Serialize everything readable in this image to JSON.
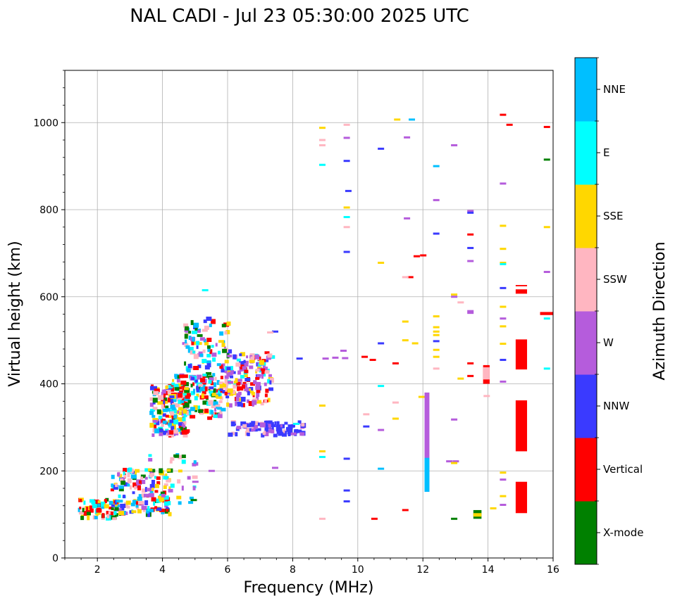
{
  "chart_data": {
    "type": "scatter",
    "title": "NAL CADI - Jul 23 05:30:00 2025 UTC",
    "xlabel": "Frequency (MHz)",
    "ylabel": "Virtual height (km)",
    "xlim": [
      1,
      16
    ],
    "ylim": [
      0,
      1120
    ],
    "xticks": [
      2,
      4,
      6,
      8,
      10,
      12,
      14,
      16
    ],
    "yticks": [
      0,
      200,
      400,
      600,
      800,
      1000
    ],
    "grid": true,
    "colorbar": {
      "label": "Azimuth Direction",
      "categories": [
        {
          "name": "X-mode",
          "color": "#008000"
        },
        {
          "name": "Vertical",
          "color": "#ff0000"
        },
        {
          "name": "NNW",
          "color": "#3a3aff"
        },
        {
          "name": "W",
          "color": "#b55cdc"
        },
        {
          "name": "SSW",
          "color": "#ffb6c1"
        },
        {
          "name": "SSE",
          "color": "#ffd700"
        },
        {
          "name": "E",
          "color": "#00ffff"
        },
        {
          "name": "NNE",
          "color": "#00bfff"
        }
      ]
    },
    "segments": [
      {
        "x0": 14.85,
        "x1": 15.2,
        "y0": 103,
        "y1": 175,
        "c": "Vertical"
      },
      {
        "x0": 14.85,
        "x1": 15.2,
        "y0": 245,
        "y1": 362,
        "c": "Vertical"
      },
      {
        "x0": 14.85,
        "x1": 15.2,
        "y0": 433,
        "y1": 502,
        "c": "Vertical"
      },
      {
        "x0": 14.85,
        "x1": 15.2,
        "y0": 607,
        "y1": 617,
        "c": "Vertical"
      },
      {
        "x0": 14.85,
        "x1": 15.2,
        "y0": 624,
        "y1": 627,
        "c": "Vertical"
      },
      {
        "x0": 12.05,
        "x1": 12.2,
        "y0": 152,
        "y1": 380,
        "c": "W"
      },
      {
        "x0": 12.05,
        "x1": 12.2,
        "y0": 152,
        "y1": 230,
        "c": "NNE"
      },
      {
        "x0": 13.55,
        "x1": 13.8,
        "y0": 90,
        "y1": 110,
        "c": "X-mode"
      },
      {
        "x0": 13.55,
        "x1": 13.8,
        "y0": 95,
        "y1": 103,
        "c": "SSE"
      },
      {
        "x0": 13.85,
        "x1": 14.05,
        "y0": 400,
        "y1": 443,
        "c": "Vertical"
      },
      {
        "x0": 13.85,
        "x1": 14.05,
        "y0": 410,
        "y1": 438,
        "c": "SSW"
      },
      {
        "x0": 15.6,
        "x1": 16.0,
        "y0": 558,
        "y1": 565,
        "c": "Vertical"
      }
    ],
    "points": [
      {
        "f": 8.9,
        "h": 988,
        "c": "SSE"
      },
      {
        "f": 8.9,
        "h": 960,
        "c": "SSW"
      },
      {
        "f": 8.9,
        "h": 948,
        "c": "SSW"
      },
      {
        "f": 8.9,
        "h": 903,
        "c": "E"
      },
      {
        "f": 8.9,
        "h": 350,
        "c": "SSE"
      },
      {
        "f": 8.9,
        "h": 245,
        "c": "SSE"
      },
      {
        "f": 8.9,
        "h": 232,
        "c": "E"
      },
      {
        "f": 8.9,
        "h": 90,
        "c": "SSW"
      },
      {
        "f": 9.65,
        "h": 995,
        "c": "SSW"
      },
      {
        "f": 9.65,
        "h": 965,
        "c": "W"
      },
      {
        "f": 9.65,
        "h": 912,
        "c": "NNW"
      },
      {
        "f": 9.7,
        "h": 843,
        "c": "NNW"
      },
      {
        "f": 9.65,
        "h": 805,
        "c": "SSE"
      },
      {
        "f": 9.65,
        "h": 783,
        "c": "E"
      },
      {
        "f": 9.65,
        "h": 760,
        "c": "SSW"
      },
      {
        "f": 9.65,
        "h": 703,
        "c": "NNW"
      },
      {
        "f": 9.65,
        "h": 228,
        "c": "NNW"
      },
      {
        "f": 9.65,
        "h": 155,
        "c": "NNW"
      },
      {
        "f": 9.65,
        "h": 130,
        "c": "NNW"
      },
      {
        "f": 10.7,
        "h": 940,
        "c": "NNW"
      },
      {
        "f": 10.7,
        "h": 678,
        "c": "SSE"
      },
      {
        "f": 10.7,
        "h": 493,
        "c": "NNW"
      },
      {
        "f": 10.7,
        "h": 395,
        "c": "E"
      },
      {
        "f": 10.7,
        "h": 205,
        "c": "NNE"
      },
      {
        "f": 10.5,
        "h": 90,
        "c": "Vertical"
      },
      {
        "f": 10.25,
        "h": 302,
        "c": "NNW"
      },
      {
        "f": 10.25,
        "h": 330,
        "c": "SSW"
      },
      {
        "f": 10.7,
        "h": 294,
        "c": "W"
      },
      {
        "f": 11.2,
        "h": 1007,
        "c": "SSE"
      },
      {
        "f": 11.65,
        "h": 1007,
        "c": "NNE"
      },
      {
        "f": 11.5,
        "h": 966,
        "c": "W"
      },
      {
        "f": 11.5,
        "h": 780,
        "c": "W"
      },
      {
        "f": 11.8,
        "h": 693,
        "c": "Vertical"
      },
      {
        "f": 12.0,
        "h": 695,
        "c": "Vertical"
      },
      {
        "f": 11.6,
        "h": 645,
        "c": "Vertical"
      },
      {
        "f": 11.45,
        "h": 645,
        "c": "SSW"
      },
      {
        "f": 11.45,
        "h": 543,
        "c": "SSE"
      },
      {
        "f": 11.45,
        "h": 500,
        "c": "SSE"
      },
      {
        "f": 11.75,
        "h": 493,
        "c": "SSE"
      },
      {
        "f": 11.15,
        "h": 447,
        "c": "Vertical"
      },
      {
        "f": 11.15,
        "h": 357,
        "c": "SSW"
      },
      {
        "f": 11.15,
        "h": 320,
        "c": "SSE"
      },
      {
        "f": 11.45,
        "h": 110,
        "c": "Vertical"
      },
      {
        "f": 11.95,
        "h": 370,
        "c": "SSE"
      },
      {
        "f": 12.4,
        "h": 900,
        "c": "NNE"
      },
      {
        "f": 12.4,
        "h": 822,
        "c": "W"
      },
      {
        "f": 12.4,
        "h": 745,
        "c": "NNW"
      },
      {
        "f": 12.4,
        "h": 555,
        "c": "SSE"
      },
      {
        "f": 12.4,
        "h": 530,
        "c": "SSE"
      },
      {
        "f": 12.4,
        "h": 520,
        "c": "SSE"
      },
      {
        "f": 12.4,
        "h": 512,
        "c": "SSE"
      },
      {
        "f": 12.4,
        "h": 498,
        "c": "NNW"
      },
      {
        "f": 12.4,
        "h": 478,
        "c": "SSE"
      },
      {
        "f": 12.4,
        "h": 462,
        "c": "SSE"
      },
      {
        "f": 12.4,
        "h": 435,
        "c": "SSW"
      },
      {
        "f": 12.95,
        "h": 948,
        "c": "W"
      },
      {
        "f": 12.95,
        "h": 605,
        "c": "SSE"
      },
      {
        "f": 12.95,
        "h": 600,
        "c": "W"
      },
      {
        "f": 13.15,
        "h": 587,
        "c": "SSW"
      },
      {
        "f": 13.15,
        "h": 412,
        "c": "SSE"
      },
      {
        "f": 12.95,
        "h": 318,
        "c": "W"
      },
      {
        "f": 12.8,
        "h": 222,
        "c": "W"
      },
      {
        "f": 13.0,
        "h": 222,
        "c": "W"
      },
      {
        "f": 12.95,
        "h": 218,
        "c": "SSE"
      },
      {
        "f": 12.95,
        "h": 90,
        "c": "X-mode"
      },
      {
        "f": 13.45,
        "h": 797,
        "c": "W"
      },
      {
        "f": 13.45,
        "h": 793,
        "c": "NNW"
      },
      {
        "f": 13.45,
        "h": 743,
        "c": "Vertical"
      },
      {
        "f": 13.45,
        "h": 712,
        "c": "NNW"
      },
      {
        "f": 13.45,
        "h": 682,
        "c": "W"
      },
      {
        "f": 13.45,
        "h": 567,
        "c": "W"
      },
      {
        "f": 13.45,
        "h": 563,
        "c": "W"
      },
      {
        "f": 13.45,
        "h": 447,
        "c": "Vertical"
      },
      {
        "f": 13.45,
        "h": 418,
        "c": "Vertical"
      },
      {
        "f": 14.45,
        "h": 1018,
        "c": "Vertical"
      },
      {
        "f": 14.65,
        "h": 995,
        "c": "Vertical"
      },
      {
        "f": 14.45,
        "h": 860,
        "c": "W"
      },
      {
        "f": 14.45,
        "h": 763,
        "c": "SSE"
      },
      {
        "f": 14.45,
        "h": 710,
        "c": "SSE"
      },
      {
        "f": 14.45,
        "h": 678,
        "c": "SSE"
      },
      {
        "f": 14.45,
        "h": 675,
        "c": "E"
      },
      {
        "f": 14.45,
        "h": 620,
        "c": "NNW"
      },
      {
        "f": 14.45,
        "h": 577,
        "c": "SSE"
      },
      {
        "f": 14.45,
        "h": 550,
        "c": "W"
      },
      {
        "f": 14.45,
        "h": 532,
        "c": "SSE"
      },
      {
        "f": 14.45,
        "h": 492,
        "c": "SSE"
      },
      {
        "f": 14.45,
        "h": 455,
        "c": "NNW"
      },
      {
        "f": 14.45,
        "h": 405,
        "c": "W"
      },
      {
        "f": 14.45,
        "h": 196,
        "c": "SSE"
      },
      {
        "f": 14.45,
        "h": 180,
        "c": "W"
      },
      {
        "f": 14.45,
        "h": 142,
        "c": "SSE"
      },
      {
        "f": 14.45,
        "h": 122,
        "c": "W"
      },
      {
        "f": 14.15,
        "h": 114,
        "c": "SSE"
      },
      {
        "f": 13.95,
        "h": 372,
        "c": "SSW"
      },
      {
        "f": 15.8,
        "h": 990,
        "c": "Vertical"
      },
      {
        "f": 15.8,
        "h": 915,
        "c": "X-mode"
      },
      {
        "f": 15.8,
        "h": 760,
        "c": "SSE"
      },
      {
        "f": 15.8,
        "h": 657,
        "c": "W"
      },
      {
        "f": 15.8,
        "h": 550,
        "c": "E"
      },
      {
        "f": 15.8,
        "h": 435,
        "c": "E"
      },
      {
        "f": 9.3,
        "h": 460,
        "c": "W"
      },
      {
        "f": 9.0,
        "h": 458,
        "c": "W"
      },
      {
        "f": 9.6,
        "h": 459,
        "c": "W"
      },
      {
        "f": 9.55,
        "h": 476,
        "c": "W"
      },
      {
        "f": 10.2,
        "h": 462,
        "c": "Vertical"
      },
      {
        "f": 10.45,
        "h": 455,
        "c": "Vertical"
      },
      {
        "f": 8.2,
        "h": 458,
        "c": "NNW"
      },
      {
        "f": 8.1,
        "h": 308,
        "c": "E"
      },
      {
        "f": 5.3,
        "h": 615,
        "c": "E"
      },
      {
        "f": 7.45,
        "h": 520,
        "c": "NNW"
      },
      {
        "f": 7.3,
        "h": 518,
        "c": "SSW"
      },
      {
        "f": 7.45,
        "h": 207,
        "c": "W"
      },
      {
        "f": 5.5,
        "h": 200,
        "c": "W"
      },
      {
        "f": 5.0,
        "h": 175,
        "c": "W"
      },
      {
        "f": 4.95,
        "h": 133,
        "c": "X-mode"
      }
    ],
    "clusters": [
      {
        "f0": 6.0,
        "f1": 8.3,
        "h0": 280,
        "h1": 312,
        "colors": [
          "NNW",
          "NNW",
          "NNW",
          "W",
          "W",
          "NNW",
          "SSW",
          "NNW"
        ],
        "n": 90
      },
      {
        "f0": 1.4,
        "f1": 2.6,
        "h0": 88,
        "h1": 135,
        "colors": [
          "Vertical",
          "E",
          "SSW",
          "NNE",
          "X-mode",
          "SSE",
          "Vertical"
        ],
        "n": 70
      },
      {
        "f0": 2.4,
        "f1": 4.2,
        "h0": 100,
        "h1": 205,
        "colors": [
          "Vertical",
          "Vertical",
          "W",
          "SSW",
          "NNW",
          "X-mode",
          "SSE",
          "E",
          "NNE"
        ],
        "n": 160
      },
      {
        "f0": 3.5,
        "f1": 5.0,
        "h0": 120,
        "h1": 240,
        "colors": [
          "W",
          "SSW",
          "E",
          "X-mode",
          "SSE",
          "NNE"
        ],
        "n": 35
      },
      {
        "f0": 3.6,
        "f1": 4.7,
        "h0": 280,
        "h1": 395,
        "colors": [
          "Vertical",
          "Vertical",
          "E",
          "NNE",
          "SSE",
          "X-mode",
          "W",
          "SSW",
          "NNW"
        ],
        "n": 170
      },
      {
        "f0": 4.2,
        "f1": 5.8,
        "h0": 320,
        "h1": 420,
        "colors": [
          "E",
          "NNE",
          "SSE",
          "X-mode",
          "Vertical",
          "W",
          "SSW"
        ],
        "n": 120
      },
      {
        "f0": 4.6,
        "f1": 6.0,
        "h0": 370,
        "h1": 550,
        "colors": [
          "E",
          "NNE",
          "SSE",
          "X-mode",
          "Vertical",
          "W",
          "NNW",
          "SSW"
        ],
        "n": 130
      },
      {
        "f0": 5.9,
        "f1": 7.3,
        "h0": 350,
        "h1": 470,
        "colors": [
          "W",
          "W",
          "SSW",
          "SSE",
          "NNW",
          "E",
          "Vertical"
        ],
        "n": 150
      }
    ]
  }
}
